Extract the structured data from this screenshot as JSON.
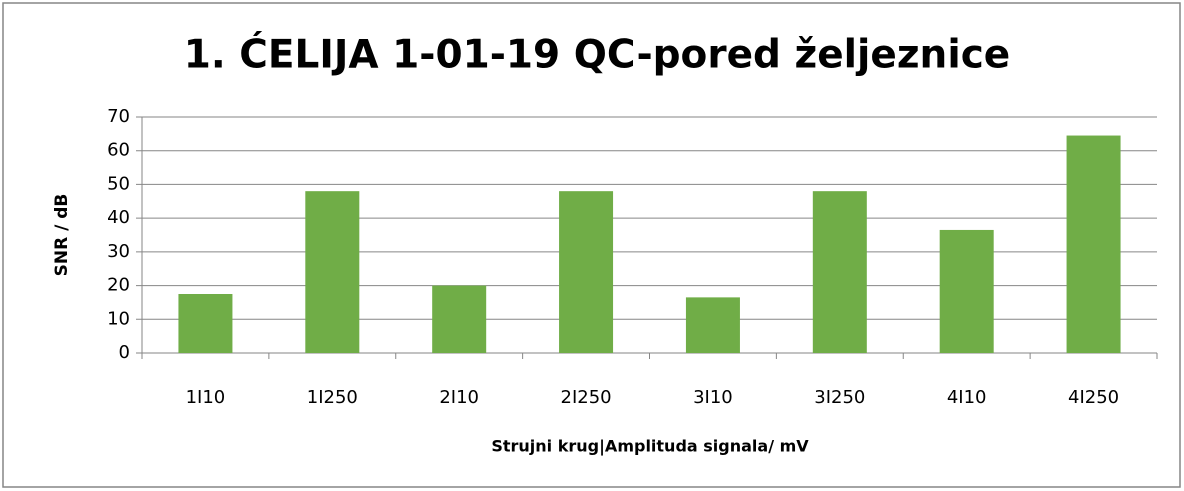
{
  "chart_data": {
    "type": "bar",
    "title": "1. ĆELIJA 1-01-19 QC-pored željeznice",
    "y_label": "SNR / dB",
    "x_label": "Strujni krug|Amplituda signala/ mV",
    "categories": [
      "1I10",
      "1I250",
      "2I10",
      "2I250",
      "3I10",
      "3I250",
      "4I10",
      "4I250"
    ],
    "values": [
      17.5,
      48,
      20,
      48,
      16.5,
      48,
      36.5,
      64.5
    ],
    "color": "#70ad47",
    "ylim": [
      0,
      70
    ],
    "yticks": [
      0,
      10,
      20,
      30,
      40,
      50,
      60,
      70
    ],
    "grid": true
  }
}
